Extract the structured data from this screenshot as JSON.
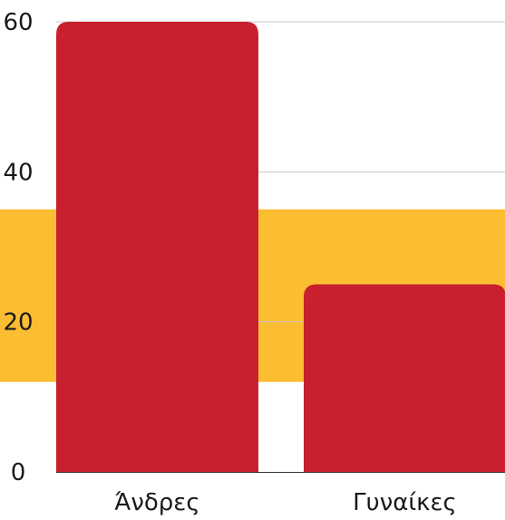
{
  "chart_data": {
    "type": "bar",
    "categories": [
      "Άνδρες",
      "Γυναίκες"
    ],
    "values": [
      60,
      25
    ],
    "ylim": [
      0,
      60
    ],
    "yticks": [
      0,
      20,
      40,
      60
    ],
    "grid": true,
    "highlight_band": [
      12,
      35
    ],
    "colors": {
      "bar": "#c8202f",
      "band": "#fbbd31",
      "grid": "#c8c8c8",
      "baseline": "#333333",
      "text": "#1a1a1a"
    }
  }
}
